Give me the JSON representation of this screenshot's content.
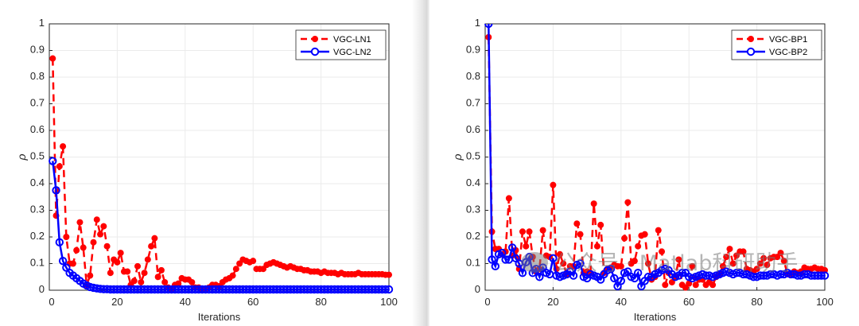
{
  "watermark": "公众号 · Matlab科研助手",
  "colors": {
    "series1": "#ff0000",
    "series2": "#0000ff",
    "grid": "#ebebeb",
    "axis": "#262626"
  },
  "chart_data": [
    {
      "type": "line",
      "xlabel": "Iterations",
      "ylabel": "ρ",
      "xlim": [
        0,
        100
      ],
      "ylim": [
        0,
        1
      ],
      "xticks": [
        0,
        20,
        40,
        60,
        80,
        100
      ],
      "yticks": [
        0,
        0.1,
        0.2,
        0.3,
        0.4,
        0.5,
        0.6,
        0.7,
        0.8,
        0.9,
        1
      ],
      "grid": true,
      "legend": "top-right",
      "series": [
        {
          "name": "VGC-LN1",
          "style": "dashed",
          "marker": "filled-circle",
          "color": "#ff0000",
          "values": [
            0.87,
            0.28,
            0.465,
            0.54,
            0.2,
            0.1,
            0.1,
            0.15,
            0.255,
            0.16,
            0.02,
            0.055,
            0.18,
            0.265,
            0.21,
            0.24,
            0.165,
            0.065,
            0.115,
            0.105,
            0.14,
            0.07,
            0.07,
            0.02,
            0.035,
            0.09,
            0.03,
            0.065,
            0.115,
            0.165,
            0.195,
            0.05,
            0.075,
            0.03,
            0.01,
            0.005,
            0.02,
            0.025,
            0.045,
            0.04,
            0.04,
            0.03,
            0.01,
            0.01,
            0.005,
            0.005,
            0.01,
            0.02,
            0.02,
            0.015,
            0.03,
            0.04,
            0.045,
            0.055,
            0.08,
            0.1,
            0.115,
            0.11,
            0.105,
            0.11,
            0.08,
            0.08,
            0.08,
            0.095,
            0.1,
            0.105,
            0.1,
            0.095,
            0.09,
            0.085,
            0.09,
            0.085,
            0.08,
            0.08,
            0.075,
            0.075,
            0.07,
            0.07,
            0.07,
            0.065,
            0.07,
            0.065,
            0.065,
            0.065,
            0.06,
            0.065,
            0.06,
            0.06,
            0.06,
            0.06,
            0.065,
            0.06,
            0.06,
            0.06,
            0.06,
            0.06,
            0.06,
            0.06,
            0.058,
            0.058
          ]
        },
        {
          "name": "VGC-LN2",
          "style": "solid",
          "marker": "open-circle",
          "color": "#0000ff",
          "values": [
            0.485,
            0.375,
            0.18,
            0.11,
            0.085,
            0.065,
            0.055,
            0.045,
            0.035,
            0.025,
            0.018,
            0.012,
            0.009,
            0.007,
            0.005,
            0.004,
            0.004,
            0.003,
            0.003,
            0.003,
            0.003,
            0.003,
            0.003,
            0.003,
            0.003,
            0.003,
            0.003,
            0.003,
            0.003,
            0.003,
            0.003,
            0.003,
            0.003,
            0.003,
            0.003,
            0.003,
            0.003,
            0.003,
            0.003,
            0.003,
            0.003,
            0.003,
            0.003,
            0.003,
            0.003,
            0.003,
            0.003,
            0.003,
            0.003,
            0.003,
            0.003,
            0.003,
            0.003,
            0.003,
            0.003,
            0.003,
            0.003,
            0.003,
            0.003,
            0.003,
            0.003,
            0.003,
            0.003,
            0.003,
            0.003,
            0.003,
            0.003,
            0.003,
            0.003,
            0.003,
            0.003,
            0.003,
            0.003,
            0.003,
            0.003,
            0.003,
            0.003,
            0.003,
            0.003,
            0.003,
            0.003,
            0.003,
            0.003,
            0.003,
            0.003,
            0.003,
            0.003,
            0.003,
            0.003,
            0.003,
            0.003,
            0.003,
            0.003,
            0.003,
            0.003,
            0.003,
            0.003,
            0.003,
            0.003,
            0.003
          ]
        }
      ]
    },
    {
      "type": "line",
      "xlabel": "Iterations",
      "ylabel": "ρ",
      "xlim": [
        0,
        100
      ],
      "ylim": [
        0,
        1
      ],
      "xticks": [
        0,
        20,
        40,
        60,
        80,
        100
      ],
      "yticks": [
        0,
        0.1,
        0.2,
        0.3,
        0.4,
        0.5,
        0.6,
        0.7,
        0.8,
        0.9,
        1
      ],
      "grid": true,
      "legend": "top-right",
      "series": [
        {
          "name": "VGC-BP1",
          "style": "dashed",
          "marker": "filled-circle",
          "color": "#ff0000",
          "values": [
            0.95,
            0.22,
            0.155,
            0.155,
            0.135,
            0.145,
            0.345,
            0.13,
            0.15,
            0.08,
            0.22,
            0.165,
            0.22,
            0.125,
            0.07,
            0.08,
            0.225,
            0.13,
            0.125,
            0.395,
            0.08,
            0.135,
            0.1,
            0.06,
            0.09,
            0.09,
            0.25,
            0.21,
            0.065,
            0.07,
            0.065,
            0.325,
            0.165,
            0.245,
            0.065,
            0.08,
            0.085,
            0.095,
            0.09,
            0.09,
            0.195,
            0.33,
            0.1,
            0.11,
            0.165,
            0.205,
            0.21,
            0.1,
            0.04,
            0.05,
            0.225,
            0.145,
            0.02,
            0.065,
            0.03,
            0.05,
            0.115,
            0.02,
            0.01,
            0.025,
            0.09,
            0.02,
            0.04,
            0.04,
            0.02,
            0.03,
            0.02,
            0.05,
            0.06,
            0.09,
            0.125,
            0.155,
            0.1,
            0.13,
            0.145,
            0.145,
            0.08,
            0.075,
            0.07,
            0.08,
            0.1,
            0.12,
            0.095,
            0.12,
            0.125,
            0.125,
            0.14,
            0.11,
            0.06,
            0.06,
            0.07,
            0.065,
            0.07,
            0.085,
            0.08,
            0.08,
            0.085,
            0.08,
            0.08,
            0.075
          ]
        },
        {
          "name": "VGC-BP2",
          "style": "solid",
          "marker": "open-circle",
          "color": "#0000ff",
          "values": [
            1.0,
            0.115,
            0.09,
            0.135,
            0.14,
            0.115,
            0.115,
            0.16,
            0.12,
            0.1,
            0.065,
            0.105,
            0.125,
            0.065,
            0.08,
            0.05,
            0.085,
            0.065,
            0.06,
            0.12,
            0.055,
            0.05,
            0.055,
            0.06,
            0.07,
            0.055,
            0.095,
            0.1,
            0.05,
            0.045,
            0.06,
            0.055,
            0.05,
            0.04,
            0.06,
            0.075,
            0.08,
            0.045,
            0.015,
            0.035,
            0.065,
            0.07,
            0.05,
            0.045,
            0.065,
            0.015,
            0.035,
            0.05,
            0.05,
            0.06,
            0.065,
            0.075,
            0.08,
            0.075,
            0.06,
            0.05,
            0.055,
            0.065,
            0.065,
            0.05,
            0.045,
            0.05,
            0.055,
            0.06,
            0.055,
            0.055,
            0.05,
            0.055,
            0.06,
            0.065,
            0.07,
            0.065,
            0.06,
            0.065,
            0.065,
            0.06,
            0.06,
            0.055,
            0.05,
            0.05,
            0.055,
            0.055,
            0.055,
            0.06,
            0.06,
            0.055,
            0.06,
            0.06,
            0.065,
            0.06,
            0.06,
            0.055,
            0.055,
            0.06,
            0.06,
            0.055,
            0.055,
            0.055,
            0.055,
            0.055
          ]
        }
      ]
    }
  ]
}
